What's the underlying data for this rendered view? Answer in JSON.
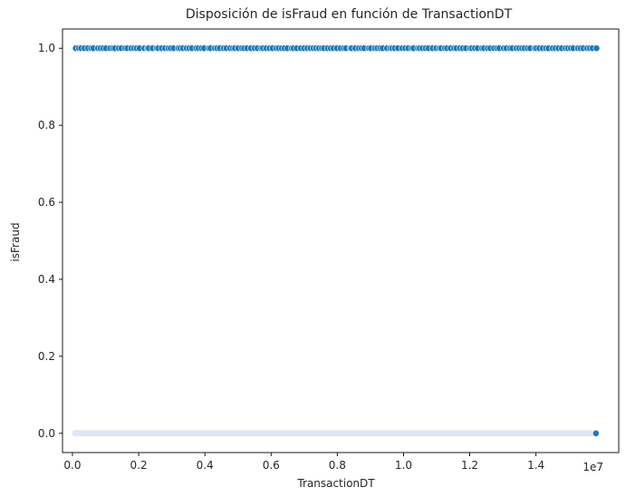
{
  "chart_data": {
    "type": "scatter",
    "title": "Disposición de isFraud en función de TransactionDT",
    "xlabel": "TransactionDT",
    "ylabel": "isFraud",
    "x_offset_label": "1e7",
    "xlim": [
      -300000,
      16500000
    ],
    "ylim": [
      -0.05,
      1.05
    ],
    "x_ticks": [
      0,
      2000000,
      4000000,
      6000000,
      8000000,
      10000000,
      12000000,
      14000000
    ],
    "x_tick_labels": [
      "0.0",
      "0.2",
      "0.4",
      "0.6",
      "0.8",
      "1.0",
      "1.2",
      "1.4"
    ],
    "y_ticks": [
      0,
      0.2,
      0.4,
      0.6,
      0.8,
      1.0
    ],
    "y_tick_labels": [
      "0.0",
      "0.2",
      "0.4",
      "0.6",
      "0.8",
      "1.0"
    ],
    "grid": false,
    "marker_color": "#1f77b4",
    "series": [
      {
        "y": 1,
        "x_range": [
          100000,
          15800000
        ],
        "description_visible": "dense band of points across full range"
      },
      {
        "y": 0,
        "x_range": [
          86400,
          15811131
        ],
        "description_visible": "very dense light band with a single visible endpoint marker"
      }
    ],
    "endpoint_zero": [
      15811131,
      0
    ]
  }
}
